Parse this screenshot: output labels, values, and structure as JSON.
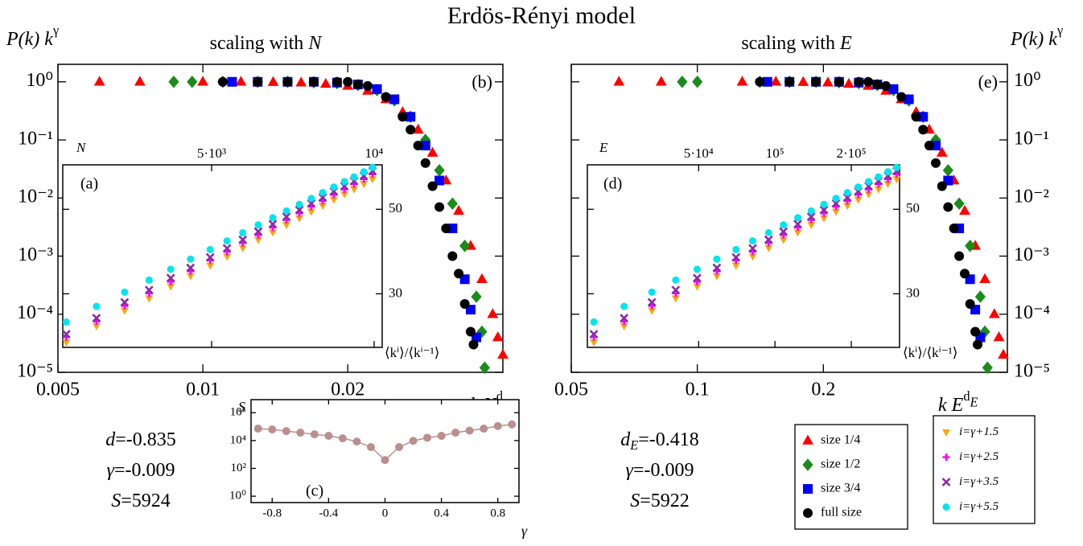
{
  "title": "Erdös-Rényi model",
  "chart_data": [
    {
      "type": "scatter",
      "title": {
        "text": "scaling with ",
        "var": "N"
      },
      "ylabel": {
        "var": "P(k) k",
        "sup": "γ"
      },
      "xlabel": {
        "var": "k N",
        "sup": "d"
      },
      "panel_label": "(b)",
      "xlog": true,
      "ylog": true,
      "xlim": [
        0.005,
        0.042
      ],
      "ylim": [
        1e-05,
        2
      ],
      "xticks": [
        0.005,
        0.01,
        0.02
      ],
      "yticks": [
        {
          "value": 1e-05,
          "label": "10⁻⁵"
        },
        {
          "value": 0.0001,
          "label": "10⁻⁴"
        },
        {
          "value": 0.001,
          "label": "10⁻³"
        },
        {
          "value": 0.01,
          "label": "10⁻²"
        },
        {
          "value": 0.1,
          "label": "10⁻¹"
        },
        {
          "value": 1,
          "label": "10⁰"
        }
      ],
      "xtick_side": "bottom",
      "ytick_side": "left",
      "legend": false,
      "annotations": [
        {
          "var": "d",
          "text": "=-0.835"
        },
        {
          "var": "γ",
          "text": "=-0.009"
        },
        {
          "var": "S",
          "text": "=5924"
        }
      ],
      "series": [
        {
          "name": "size 1/4",
          "color": "#ff0000",
          "marker": "triangle",
          "x": [
            0.0061,
            0.0074,
            0.01,
            0.012,
            0.014,
            0.016,
            0.018,
            0.02,
            0.022,
            0.024,
            0.026,
            0.028,
            0.03,
            0.032,
            0.034,
            0.036,
            0.038,
            0.04,
            0.041,
            0.042
          ],
          "values": [
            1,
            1,
            1,
            1,
            0.99,
            0.97,
            0.92,
            0.85,
            0.7,
            0.5,
            0.3,
            0.15,
            0.06,
            0.02,
            0.006,
            0.0015,
            0.0004,
            0.0001,
            4e-05,
            2e-05
          ]
        },
        {
          "name": "size 1/2",
          "color": "#1a8c1a",
          "marker": "diamond",
          "x": [
            0.0087,
            0.0095,
            0.011,
            0.013,
            0.015,
            0.017,
            0.019,
            0.021,
            0.023,
            0.025,
            0.027,
            0.029,
            0.031,
            0.033,
            0.035,
            0.037,
            0.038,
            0.0385
          ],
          "values": [
            1,
            1,
            1,
            1,
            1,
            0.98,
            0.95,
            0.88,
            0.72,
            0.48,
            0.25,
            0.1,
            0.03,
            0.008,
            0.0015,
            0.0002,
            5e-05,
            1.2e-05
          ]
        },
        {
          "name": "size 3/4",
          "color": "#0000ff",
          "marker": "square",
          "x": [
            0.0115,
            0.013,
            0.015,
            0.017,
            0.019,
            0.021,
            0.023,
            0.025,
            0.027,
            0.029,
            0.031,
            0.033,
            0.035,
            0.036,
            0.037
          ],
          "values": [
            1,
            1,
            1,
            1,
            0.97,
            0.9,
            0.75,
            0.5,
            0.25,
            0.08,
            0.02,
            0.003,
            0.0004,
            0.00012,
            4e-05
          ]
        },
        {
          "name": "full size",
          "color": "#000000",
          "marker": "circle",
          "x": [
            0.011,
            0.013,
            0.015,
            0.017,
            0.019,
            0.02,
            0.021,
            0.022,
            0.024,
            0.026,
            0.027,
            0.028,
            0.029,
            0.03,
            0.031,
            0.032,
            0.033,
            0.034,
            0.035,
            0.036,
            0.0365
          ],
          "values": [
            1,
            1,
            1,
            1,
            1,
            1,
            0.9,
            0.85,
            0.55,
            0.25,
            0.15,
            0.08,
            0.04,
            0.016,
            0.007,
            0.003,
            0.001,
            0.0005,
            0.00015,
            5e-05,
            3e-05
          ]
        }
      ]
    },
    {
      "type": "scatter",
      "panel_label": "(a)",
      "xlabel": {
        "var": "N"
      },
      "ylabel": "⟨kⁱ⟩/⟨kⁱ⁻¹⟩",
      "xlog": true,
      "ylog": true,
      "xlim": [
        2650,
        10350
      ],
      "ylim": [
        21.7,
        65.4
      ],
      "xticks": [
        {
          "value": 5000,
          "label": "5·10³"
        },
        {
          "value": 10000,
          "label": "10⁴"
        }
      ],
      "yticks": [
        30,
        50
      ],
      "xtick_side": "top",
      "ytick_side": "right",
      "legend": false,
      "x": [
        2690,
        3060,
        3450,
        3830,
        4200,
        4570,
        4970,
        5340,
        5710,
        6100,
        6490,
        6880,
        7270,
        7650,
        8030,
        8420,
        8810,
        9180,
        9570,
        9930
      ],
      "series": [
        {
          "name": "i=γ+1.5",
          "color": "#ffa500",
          "marker": "triangle-down",
          "values": [
            22.4,
            24.7,
            27.1,
            29.2,
            31.4,
            33.4,
            35.6,
            37.6,
            39.6,
            41.6,
            43.5,
            45.5,
            47.4,
            49.3,
            51.1,
            53.0,
            54.8,
            56.5,
            58.3,
            60.0
          ]
        },
        {
          "name": "i=γ+2.5",
          "color": "#ff00ff",
          "marker": "plus",
          "values": [
            23.1,
            25.4,
            27.9,
            30.1,
            32.3,
            34.4,
            36.7,
            38.7,
            40.8,
            42.8,
            44.8,
            46.9,
            48.8,
            50.8,
            52.6,
            54.6,
            56.4,
            58.2,
            60.0,
            61.8
          ]
        },
        {
          "name": "i=γ+3.5",
          "color": "#8b2ca8",
          "marker": "x",
          "values": [
            23.5,
            25.9,
            28.5,
            30.7,
            33.0,
            35.1,
            37.4,
            39.5,
            41.6,
            43.7,
            45.7,
            47.8,
            49.8,
            51.8,
            53.7,
            55.7,
            57.5,
            59.3,
            61.2,
            63.0
          ]
        },
        {
          "name": "i=γ+5.5",
          "color": "#00e5ee",
          "marker": "circle",
          "values": [
            25.3,
            27.8,
            30.3,
            32.6,
            34.8,
            37.0,
            39.2,
            41.3,
            43.4,
            45.5,
            47.5,
            49.5,
            51.5,
            53.4,
            55.3,
            57.2,
            59.1,
            60.8,
            62.7,
            64.4
          ]
        }
      ]
    },
    {
      "type": "line",
      "panel_label": "(c)",
      "xlabel": {
        "var": "γ"
      },
      "ylabel": {
        "var": "S"
      },
      "xlog": false,
      "ylog": true,
      "xlim": [
        -0.95,
        0.95
      ],
      "ylim": [
        0.35,
        8700000
      ],
      "xticks": [
        -0.8,
        -0.4,
        0,
        0.4,
        0.8
      ],
      "yticks": [
        {
          "value": 1,
          "label": "10⁰"
        },
        {
          "value": 100,
          "label": "10²"
        },
        {
          "value": 10000,
          "label": "10⁴"
        },
        {
          "value": 1000000,
          "label": "10⁶"
        }
      ],
      "xtick_side": "bottom",
      "ytick_side": "left",
      "color": "#bc8f8f",
      "marker": "circle",
      "x": [
        -0.9,
        -0.8,
        -0.7,
        -0.6,
        -0.5,
        -0.4,
        -0.3,
        -0.2,
        -0.1,
        0,
        0.1,
        0.2,
        0.3,
        0.4,
        0.5,
        0.6,
        0.7,
        0.8,
        0.9
      ],
      "values": [
        72000,
        63000,
        48000,
        37000,
        28000,
        22000,
        14500,
        8500,
        3400,
        400,
        3400,
        9500,
        16000,
        22000,
        37000,
        52000,
        72000,
        110000,
        145000
      ]
    },
    {
      "type": "scatter",
      "title": {
        "text": "scaling with ",
        "var": "E"
      },
      "ylabel": {
        "var": "P(k) k",
        "sup": "γ"
      },
      "xlabel": {
        "var": "k E",
        "sup": "d",
        "sub": "E"
      },
      "panel_label": "(e)",
      "xlog": true,
      "ylog": true,
      "xlim": [
        0.05,
        0.55
      ],
      "ylim": [
        1e-05,
        2
      ],
      "xticks": [
        0.05,
        0.1,
        0.2
      ],
      "yticks": [
        {
          "value": 1e-05,
          "label": "10⁻⁵"
        },
        {
          "value": 0.0001,
          "label": "10⁻⁴"
        },
        {
          "value": 0.001,
          "label": "10⁻³"
        },
        {
          "value": 0.01,
          "label": "10⁻²"
        },
        {
          "value": 0.1,
          "label": "10⁻¹"
        },
        {
          "value": 1,
          "label": "10⁰"
        }
      ],
      "xtick_side": "bottom",
      "ytick_side": "right",
      "legend": true,
      "annotations": [
        {
          "var": "d",
          "sub": "E",
          "text": "=-0.418"
        },
        {
          "var": "γ",
          "text": "=-0.009"
        },
        {
          "var": "S",
          "text": "=5922"
        }
      ],
      "series": [
        {
          "name": "size 1/4",
          "color": "#ff0000",
          "marker": "triangle",
          "x": [
            0.065,
            0.082,
            0.128,
            0.154,
            0.179,
            0.205,
            0.23,
            0.256,
            0.282,
            0.307,
            0.333,
            0.358,
            0.384,
            0.41,
            0.435,
            0.461,
            0.486,
            0.512,
            0.525,
            0.538
          ],
          "values": [
            1,
            1,
            1,
            1,
            0.99,
            0.97,
            0.92,
            0.85,
            0.7,
            0.5,
            0.3,
            0.15,
            0.06,
            0.02,
            0.006,
            0.0015,
            0.0004,
            0.0001,
            4e-05,
            2e-05
          ]
        },
        {
          "name": "size 1/2",
          "color": "#1a8c1a",
          "marker": "diamond",
          "x": [
            0.092,
            0.1,
            0.141,
            0.166,
            0.192,
            0.218,
            0.243,
            0.269,
            0.294,
            0.32,
            0.346,
            0.371,
            0.397,
            0.422,
            0.448,
            0.474,
            0.486,
            0.493
          ],
          "values": [
            1,
            1,
            1,
            1,
            1,
            0.98,
            0.95,
            0.88,
            0.72,
            0.48,
            0.25,
            0.1,
            0.03,
            0.008,
            0.0015,
            0.0002,
            5e-05,
            1.2e-05
          ]
        },
        {
          "name": "size 3/4",
          "color": "#0000ff",
          "marker": "square",
          "x": [
            0.147,
            0.166,
            0.192,
            0.218,
            0.243,
            0.269,
            0.294,
            0.32,
            0.346,
            0.371,
            0.397,
            0.422,
            0.448,
            0.461,
            0.474
          ],
          "values": [
            1,
            1,
            1,
            1,
            0.97,
            0.9,
            0.75,
            0.5,
            0.25,
            0.08,
            0.02,
            0.003,
            0.0004,
            0.00012,
            4e-05
          ]
        },
        {
          "name": "full size",
          "color": "#000000",
          "marker": "circle",
          "x": [
            0.141,
            0.166,
            0.192,
            0.218,
            0.243,
            0.256,
            0.269,
            0.282,
            0.307,
            0.333,
            0.346,
            0.358,
            0.371,
            0.384,
            0.397,
            0.41,
            0.422,
            0.435,
            0.448,
            0.461,
            0.467
          ],
          "values": [
            1,
            1,
            1,
            1,
            1,
            1,
            0.9,
            0.85,
            0.55,
            0.25,
            0.15,
            0.08,
            0.04,
            0.016,
            0.007,
            0.003,
            0.001,
            0.0005,
            0.00015,
            5e-05,
            3e-05
          ]
        }
      ]
    },
    {
      "type": "scatter",
      "panel_label": "(d)",
      "xlabel": {
        "var": "E"
      },
      "ylabel": "⟨kⁱ⟩/⟨kⁱ⁻¹⟩",
      "xlog": true,
      "ylog": true,
      "xlim": [
        18200,
        310000
      ],
      "ylim": [
        21.7,
        65.4
      ],
      "xticks": [
        {
          "value": 50000,
          "label": "5·10⁴"
        },
        {
          "value": 100000,
          "label": "10⁵"
        },
        {
          "value": 200000,
          "label": "2·10⁵"
        }
      ],
      "yticks": [
        30,
        50
      ],
      "xtick_side": "top",
      "ytick_side": "right",
      "legend": true,
      "x": [
        19300,
        25400,
        32700,
        40600,
        49300,
        59000,
        70200,
        81700,
        94400,
        108000,
        123000,
        139000,
        156000,
        174000,
        193000,
        213000,
        234000,
        256000,
        279000,
        302000
      ],
      "series": [
        {
          "name": "i=γ+1.5",
          "color": "#ffa500",
          "marker": "triangle-down",
          "values": [
            22.4,
            24.7,
            27.1,
            29.2,
            31.4,
            33.4,
            35.6,
            37.6,
            39.6,
            41.6,
            43.5,
            45.5,
            47.4,
            49.3,
            51.1,
            53.0,
            54.8,
            56.5,
            58.3,
            60.0
          ]
        },
        {
          "name": "i=γ+2.5",
          "color": "#ff00ff",
          "marker": "plus",
          "values": [
            23.1,
            25.4,
            27.9,
            30.1,
            32.3,
            34.4,
            36.7,
            38.7,
            40.8,
            42.8,
            44.8,
            46.9,
            48.8,
            50.8,
            52.6,
            54.6,
            56.4,
            58.2,
            60.0,
            61.8
          ]
        },
        {
          "name": "i=γ+3.5",
          "color": "#8b2ca8",
          "marker": "x",
          "values": [
            23.5,
            25.9,
            28.5,
            30.7,
            33.0,
            35.1,
            37.4,
            39.5,
            41.6,
            43.7,
            45.7,
            47.8,
            49.8,
            51.8,
            53.7,
            55.7,
            57.5,
            59.3,
            61.2,
            63.0
          ]
        },
        {
          "name": "i=γ+5.5",
          "color": "#00e5ee",
          "marker": "circle",
          "values": [
            25.3,
            27.8,
            30.3,
            32.6,
            34.8,
            37.0,
            39.2,
            41.3,
            43.4,
            45.5,
            47.5,
            49.5,
            51.5,
            53.4,
            55.3,
            57.2,
            59.1,
            60.8,
            62.7,
            64.4
          ]
        }
      ]
    }
  ]
}
